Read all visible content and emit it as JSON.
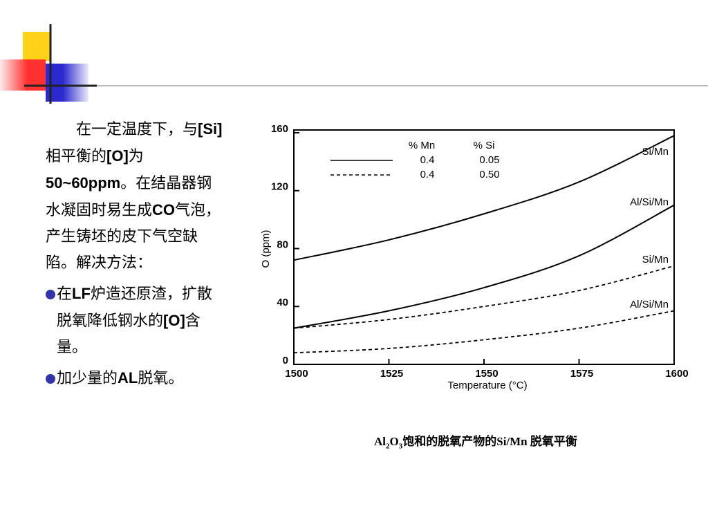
{
  "text": {
    "paragraph": [
      "在一定温度下，与",
      "[Si]",
      "相平衡的",
      "[O]",
      "为",
      "50~60ppm",
      "。在结晶器钢水凝固时易生成",
      "CO",
      "气泡，产生铸坯的皮下气空缺陷。解决方法："
    ],
    "bullets": [
      [
        "在",
        "LF",
        "炉造还原渣，扩散脱氧降低钢水的",
        "[O]",
        "含量。"
      ],
      [
        "加少量的",
        "AL",
        "脱氧。"
      ]
    ]
  },
  "chart_data": {
    "type": "line",
    "x_label": "Temperature (°C)",
    "y_label": "O (ppm)",
    "x": [
      1500,
      1525,
      1550,
      1575,
      1600
    ],
    "xlim": [
      1500,
      1600
    ],
    "xticks": [
      1500,
      1525,
      1550,
      1575,
      1600
    ],
    "ylim": [
      0,
      160
    ],
    "yticks": [
      0,
      40,
      80,
      120,
      160
    ],
    "legend_table": {
      "headers": [
        "% Mn",
        "% Si"
      ],
      "rows": [
        [
          "0.4",
          "0.05"
        ],
        [
          "0.4",
          "0.50"
        ]
      ]
    },
    "series": [
      {
        "name": "Si/Mn",
        "color": "#000000",
        "dash": "solid",
        "values": [
          72,
          86,
          104,
          126,
          158
        ]
      },
      {
        "name": "Al/Si/Mn",
        "color": "#000000",
        "dash": "solid",
        "values": [
          25,
          37,
          53,
          75,
          110
        ]
      },
      {
        "name": "Si/Mn",
        "color": "#000000",
        "dash": "dashed",
        "values": [
          25,
          31,
          40,
          51,
          68
        ]
      },
      {
        "name": "Al/Si/Mn",
        "color": "#000000",
        "dash": "dashed",
        "values": [
          8,
          11,
          17,
          25,
          37
        ]
      }
    ],
    "caption": [
      "Al",
      "2",
      "O",
      "3",
      "饱和的脱氧产物的Si/Mn 脱氧平衡"
    ]
  }
}
